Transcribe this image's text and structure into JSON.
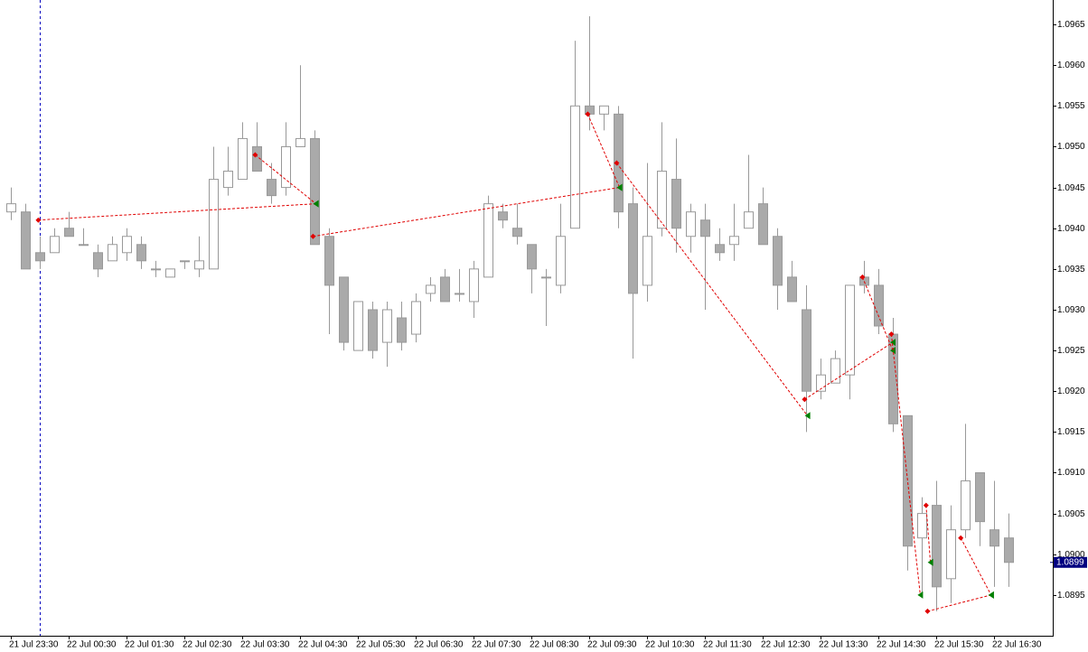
{
  "chart_data": {
    "type": "candlestick",
    "categories": [
      "21 Jul 23:30",
      null,
      null,
      null,
      "22 Jul 00:30",
      null,
      null,
      null,
      "22 Jul 01:30",
      null,
      null,
      null,
      "22 Jul 02:30",
      null,
      null,
      null,
      "22 Jul 03:30",
      null,
      null,
      null,
      "22 Jul 04:30",
      null,
      null,
      null,
      "22 Jul 05:30",
      null,
      null,
      null,
      "22 Jul 06:30",
      null,
      null,
      null,
      "22 Jul 07:30",
      null,
      null,
      null,
      "22 Jul 08:30",
      null,
      null,
      null,
      "22 Jul 09:30",
      null,
      null,
      null,
      "22 Jul 10:30",
      null,
      null,
      null,
      "22 Jul 11:30",
      null,
      null,
      null,
      "22 Jul 12:30",
      null,
      null,
      null,
      "22 Jul 13:30",
      null,
      null,
      null,
      "22 Jul 14:30",
      null,
      null,
      null,
      "22 Jul 15:30",
      null,
      null,
      null,
      "22 Jul 16:30",
      null
    ],
    "open": [
      1.0942,
      1.0942,
      1.0937,
      1.0937,
      1.094,
      1.0938,
      1.0937,
      1.0936,
      1.0937,
      1.0938,
      1.0935,
      1.0934,
      1.0936,
      1.0935,
      1.0935,
      1.0945,
      1.0946,
      1.095,
      1.0946,
      1.0945,
      1.095,
      1.0951,
      1.0939,
      1.0934,
      1.0925,
      1.093,
      1.0926,
      1.0929,
      1.0927,
      1.0932,
      1.0934,
      1.0932,
      1.0931,
      1.0934,
      1.0942,
      1.094,
      1.0938,
      1.0934,
      1.0933,
      1.094,
      1.0955,
      1.0954,
      1.0954,
      1.0943,
      1.0933,
      1.094,
      1.0946,
      1.0939,
      1.0941,
      1.0938,
      1.0938,
      1.094,
      1.0943,
      1.0939,
      1.0934,
      1.093,
      1.092,
      1.0921,
      1.0922,
      1.0934,
      1.0933,
      1.0927,
      1.0917,
      1.0902,
      1.0906,
      1.0897,
      1.0903,
      1.091,
      1.0903,
      1.0902
    ],
    "high": [
      1.0945,
      1.0943,
      1.0939,
      1.094,
      1.0942,
      1.094,
      1.0938,
      1.0939,
      1.094,
      1.0939,
      1.0936,
      1.0935,
      1.0936,
      1.0939,
      1.095,
      1.095,
      1.0953,
      1.0953,
      1.0948,
      1.0953,
      1.096,
      1.0952,
      1.094,
      1.0934,
      1.0931,
      1.0931,
      1.0931,
      1.0931,
      1.0932,
      1.0934,
      1.0935,
      1.0935,
      1.0936,
      1.0944,
      1.0943,
      1.0943,
      1.0938,
      1.0935,
      1.0943,
      1.0963,
      1.0966,
      1.0955,
      1.0955,
      1.0945,
      1.0948,
      1.0953,
      1.0951,
      1.0943,
      1.0943,
      1.094,
      1.0943,
      1.0949,
      1.0945,
      1.094,
      1.0936,
      1.0933,
      1.0924,
      1.0925,
      1.0933,
      1.0936,
      1.0935,
      1.0929,
      1.0917,
      1.0907,
      1.0909,
      1.0906,
      1.0916,
      1.091,
      1.0909,
      1.0905
    ],
    "low": [
      1.0941,
      1.0935,
      1.0935,
      1.0937,
      1.0939,
      1.0938,
      1.0934,
      1.0936,
      1.0936,
      1.0935,
      1.0934,
      1.0934,
      1.0935,
      1.0934,
      1.0935,
      1.0944,
      1.0946,
      1.0947,
      1.0943,
      1.0944,
      1.095,
      1.0938,
      1.0927,
      1.0925,
      1.0925,
      1.0924,
      1.0923,
      1.0925,
      1.0926,
      1.0931,
      1.0931,
      1.0931,
      1.0929,
      1.0934,
      1.094,
      1.0938,
      1.0932,
      1.0928,
      1.0932,
      1.094,
      1.0952,
      1.0952,
      1.094,
      1.0924,
      1.0931,
      1.0939,
      1.0937,
      1.0937,
      1.093,
      1.0936,
      1.0936,
      1.094,
      1.0938,
      1.093,
      1.0931,
      1.0915,
      1.0919,
      1.0921,
      1.0919,
      1.0932,
      1.0927,
      1.0915,
      1.0898,
      1.0895,
      1.0893,
      1.0894,
      1.0902,
      1.0901,
      1.0896,
      1.0896
    ],
    "close": [
      1.0943,
      1.0935,
      1.0936,
      1.0939,
      1.0939,
      1.0938,
      1.0935,
      1.0938,
      1.0939,
      1.0936,
      1.0935,
      1.0935,
      1.0936,
      1.0936,
      1.0946,
      1.0947,
      1.0951,
      1.0947,
      1.0944,
      1.095,
      1.0951,
      1.0938,
      1.0933,
      1.0926,
      1.0931,
      1.0925,
      1.093,
      1.0926,
      1.0931,
      1.0933,
      1.0931,
      1.0932,
      1.0935,
      1.0943,
      1.0941,
      1.0939,
      1.0935,
      1.0934,
      1.0939,
      1.0955,
      1.0954,
      1.0955,
      1.0942,
      1.0932,
      1.0939,
      1.0947,
      1.094,
      1.0942,
      1.0939,
      1.0937,
      1.0939,
      1.0942,
      1.0938,
      1.0933,
      1.0931,
      1.092,
      1.0922,
      1.0924,
      1.0933,
      1.0933,
      1.0928,
      1.0916,
      1.0901,
      1.0905,
      1.0896,
      1.0903,
      1.0909,
      1.0904,
      1.0901,
      1.0899
    ],
    "up_color": "#ffffff",
    "down_color": "#aaaaaa",
    "wick_color": "#999999",
    "ylim": [
      1.089,
      1.0968
    ],
    "yticks": [
      1.0965,
      {
        "value": 1.096,
        "label": "1.0960"
      },
      1.0955,
      {
        "value": 1.095,
        "label": "1.0950"
      },
      1.0945,
      {
        "value": 1.094,
        "label": "1.0940"
      },
      1.0935,
      {
        "value": 1.093,
        "label": "1.0930"
      },
      1.0925,
      {
        "value": 1.092,
        "label": "1.0920"
      },
      1.0915,
      {
        "value": 1.091,
        "label": "1.0910"
      },
      1.0905,
      {
        "value": 1.09,
        "label": "1.0900"
      },
      1.0895
    ],
    "last_price": 1.0899,
    "trades": [
      {
        "entry": {
          "bar": 1.9,
          "price": 1.0941
        },
        "exit": {
          "bar": 21.1,
          "price": 1.0943
        }
      },
      {
        "entry": {
          "bar": 16.9,
          "price": 1.0949
        },
        "exit": {
          "bar": 21.1,
          "price": 1.0943
        }
      },
      {
        "entry": {
          "bar": 20.9,
          "price": 1.0939
        },
        "exit": {
          "bar": 42.1,
          "price": 1.0945
        }
      },
      {
        "entry": {
          "bar": 39.9,
          "price": 1.0954
        },
        "exit": {
          "bar": 42.1,
          "price": 1.0945
        }
      },
      {
        "entry": {
          "bar": 41.9,
          "price": 1.0948
        },
        "exit": {
          "bar": 55.1,
          "price": 1.0917
        }
      },
      {
        "entry": {
          "bar": 54.9,
          "price": 1.0919
        },
        "exit": {
          "bar": 61.0,
          "price": 1.0926
        }
      },
      {
        "entry": {
          "bar": 58.9,
          "price": 1.0934
        },
        "exit": {
          "bar": 61.0,
          "price": 1.0925
        }
      },
      {
        "entry": {
          "bar": 60.9,
          "price": 1.0927
        },
        "exit": {
          "bar": 62.9,
          "price": 1.0895
        }
      },
      {
        "entry": {
          "bar": 63.3,
          "price": 1.0906
        },
        "exit": {
          "bar": 63.6,
          "price": 1.0899
        }
      },
      {
        "entry": {
          "bar": 63.4,
          "price": 1.0893
        },
        "exit": {
          "bar": 67.8,
          "price": 1.0895
        }
      },
      {
        "entry": {
          "bar": 65.7,
          "price": 1.0902
        },
        "exit": {
          "bar": 67.8,
          "price": 1.0895
        }
      }
    ],
    "entry_color": "#e00000",
    "exit_color": "#008000"
  }
}
